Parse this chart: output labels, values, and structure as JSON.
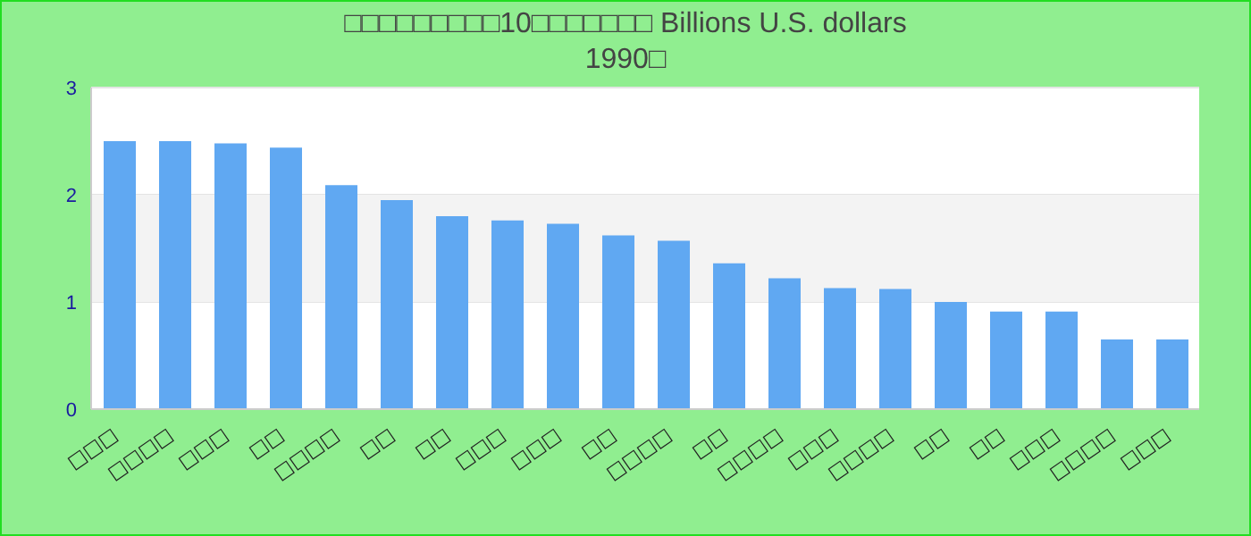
{
  "chart_data": {
    "type": "bar",
    "title": "□□□□□□□□□10□□□□□□□ Billions U.S. dollars",
    "subtitle": "1990□",
    "categories": [
      "□□□",
      "□□□□",
      "□□□",
      "□□",
      "□□□□",
      "□□",
      "□□",
      "□□□",
      "□□□",
      "□□",
      "□□□□",
      "□□",
      "□□□□",
      "□□□",
      "□□□□",
      "□□",
      "□□",
      "□□□",
      "□□□□",
      "□□□"
    ],
    "values": [
      2.5,
      2.5,
      2.48,
      2.44,
      2.09,
      1.95,
      1.8,
      1.76,
      1.73,
      1.62,
      1.57,
      1.36,
      1.22,
      1.13,
      1.12,
      1.0,
      0.91,
      0.91,
      0.65,
      0.65
    ],
    "color": "#60a8f2",
    "ylim": [
      0,
      3
    ],
    "yticks": [
      0,
      1,
      2,
      3
    ],
    "grid": "y",
    "legend": false,
    "bands": [
      {
        "axis": "y",
        "from": 1,
        "to": 2,
        "color": "#f3f3f3"
      }
    ]
  }
}
